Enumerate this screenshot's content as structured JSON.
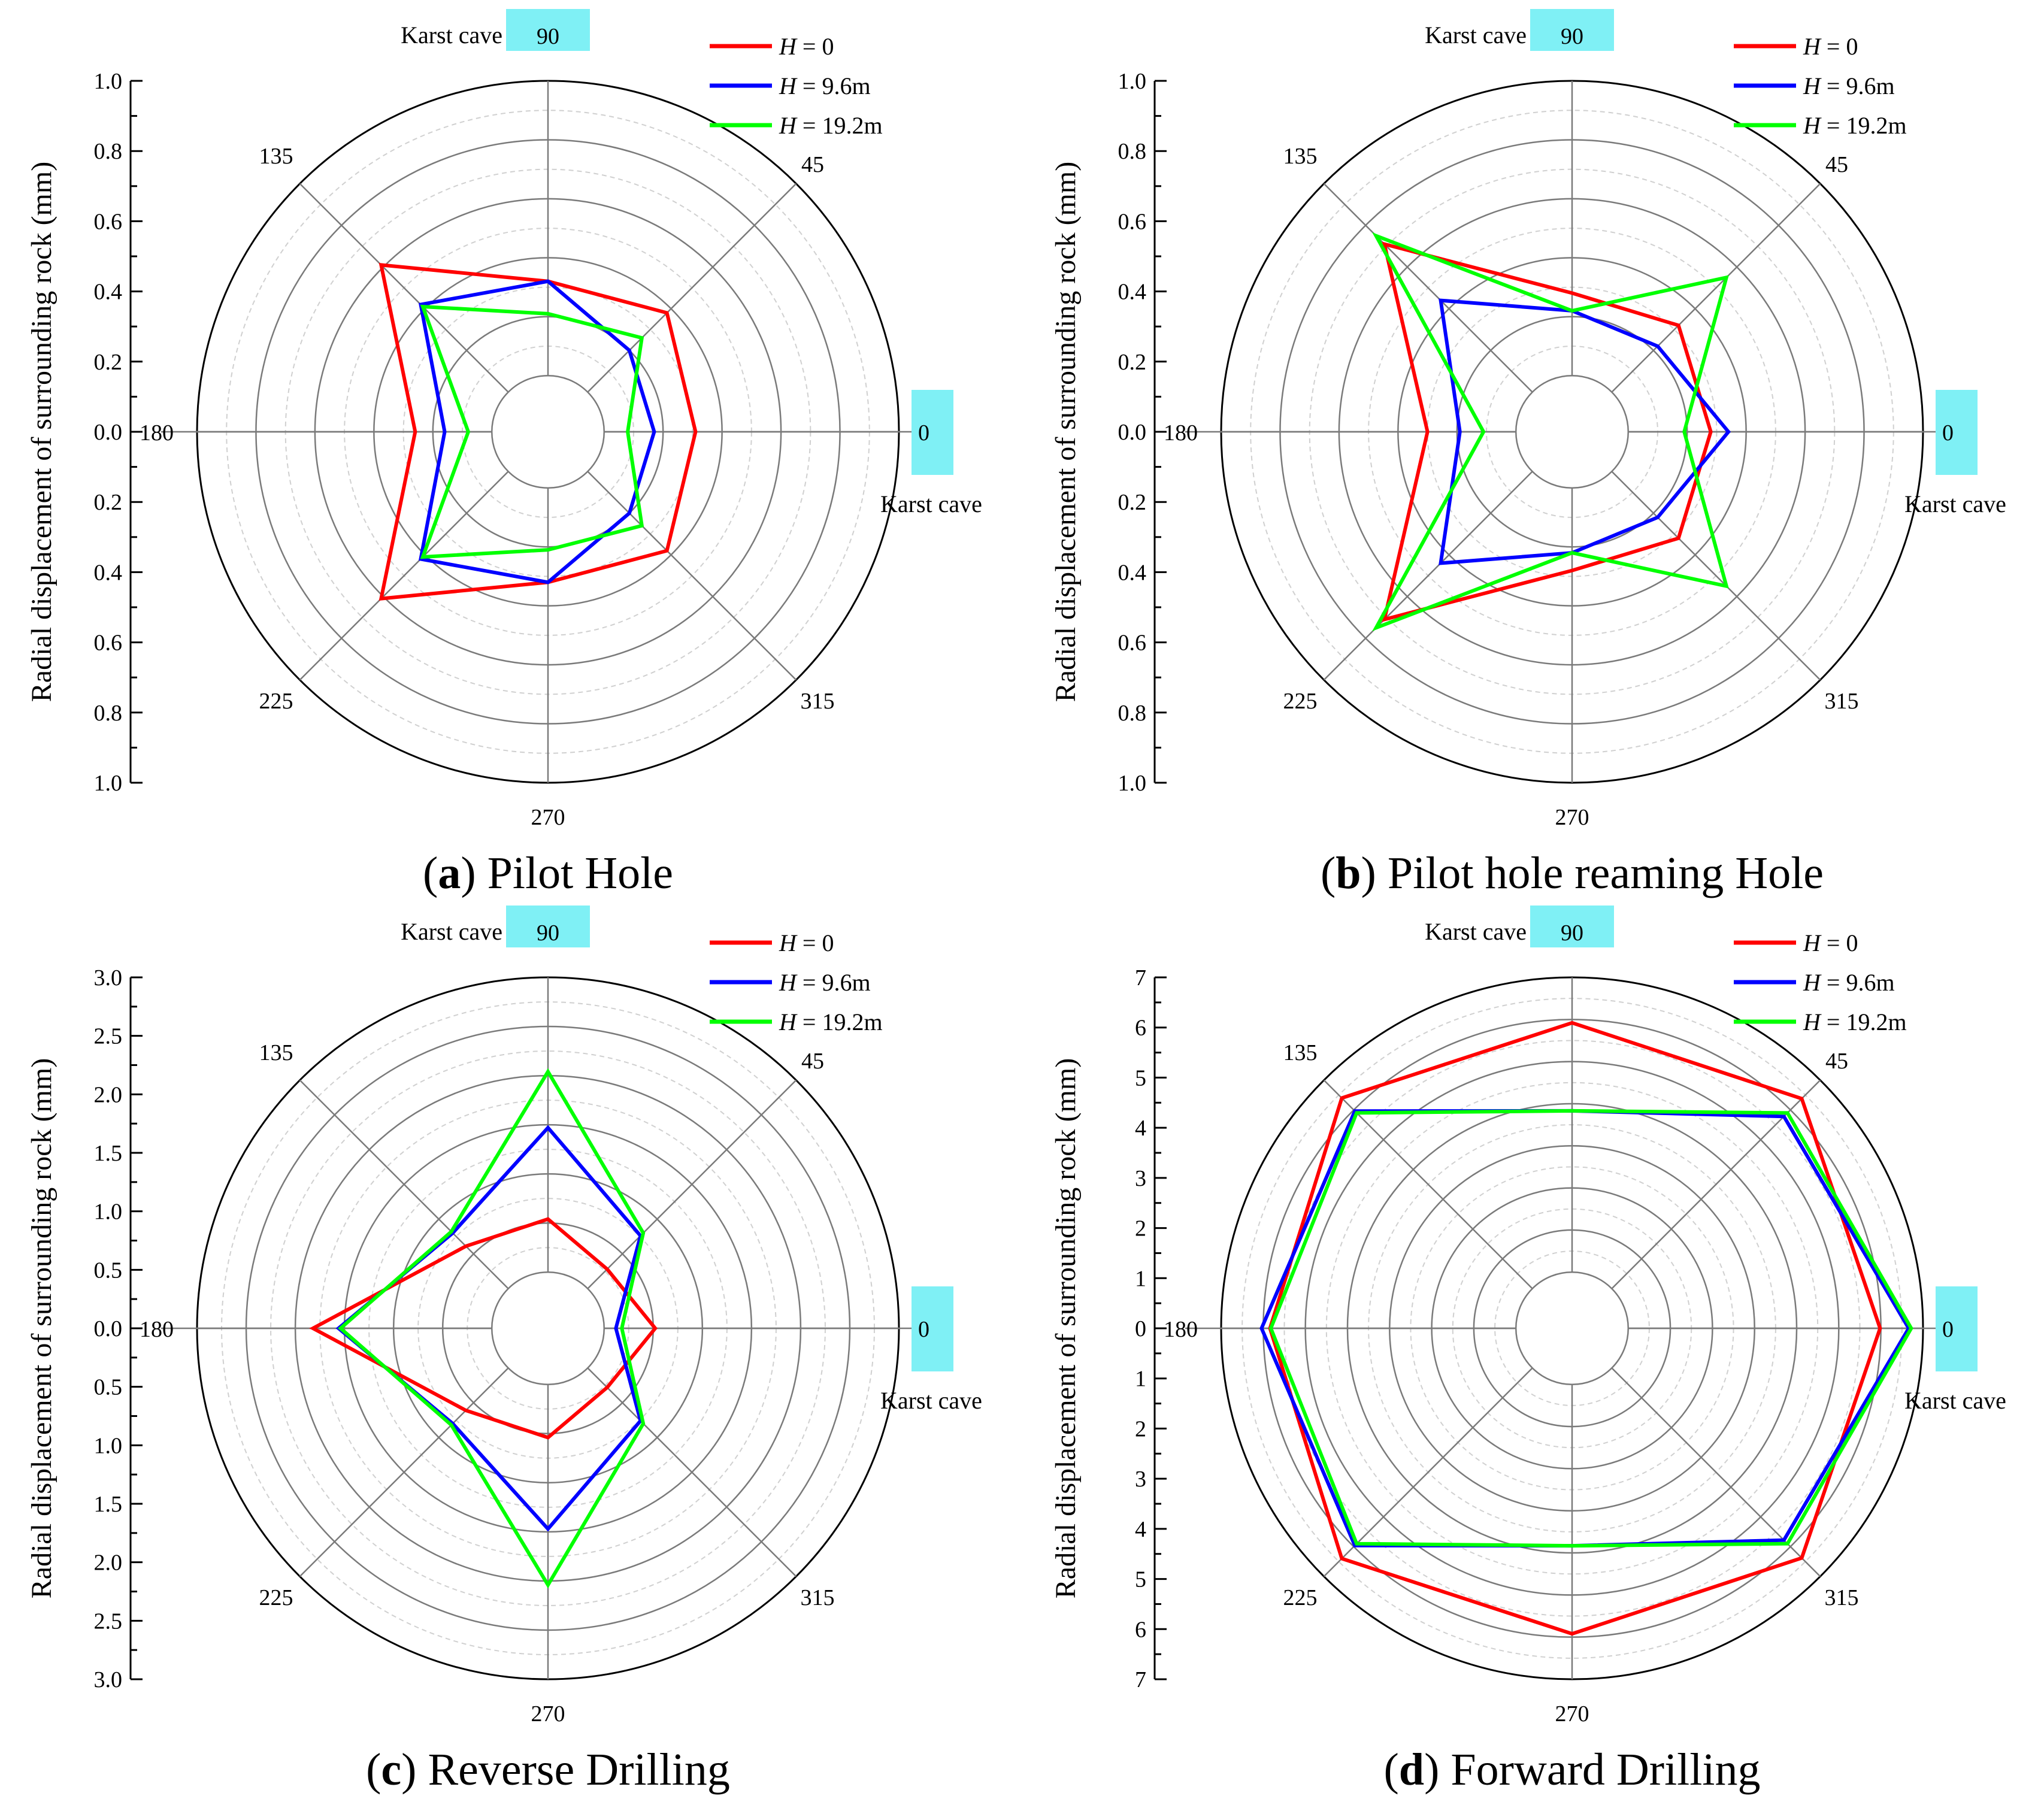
{
  "figure": {
    "legend_var": "H",
    "legend_eq": " = ",
    "cave_label": "Karst cave",
    "angle_labels": [
      "0",
      "45",
      "90",
      "135",
      "180",
      "225",
      "270",
      "315"
    ],
    "highlight_color": "#7ff0f5"
  },
  "chart_data": [
    {
      "type": "radar",
      "caption": {
        "letter": "a",
        "text": "Pilot Hole"
      },
      "ylabel": "Radial displacement of surrounding rock (mm)",
      "rlim": [
        0,
        1.0
      ],
      "ticks": [
        "1.0",
        "0.8",
        "0.6",
        "0.4",
        "0.2",
        "0.0",
        "0.2",
        "0.4",
        "0.6",
        "0.8",
        "1.0"
      ],
      "angles": [
        0,
        45,
        90,
        135,
        180,
        225,
        270,
        315
      ],
      "legend_position": "top-right",
      "series": [
        {
          "name": "0",
          "color": "#ff0000",
          "values": [
            0.31,
            0.38,
            0.32,
            0.61,
            0.26,
            0.61,
            0.32,
            0.38
          ]
        },
        {
          "name": "9.6m",
          "color": "#0000ff",
          "values": [
            0.17,
            0.2,
            0.32,
            0.42,
            0.16,
            0.42,
            0.32,
            0.2
          ]
        },
        {
          "name": "19.2m",
          "color": "#00ff00",
          "values": [
            0.08,
            0.26,
            0.21,
            0.41,
            0.08,
            0.41,
            0.21,
            0.26
          ]
        }
      ]
    },
    {
      "type": "radar",
      "caption": {
        "letter": "b",
        "text": "Pilot hole reaming Hole"
      },
      "ylabel": "Radial displacement of surrounding rock (mm)",
      "rlim": [
        0,
        1.0
      ],
      "ticks": [
        "1.0",
        "0.8",
        "0.6",
        "0.4",
        "0.2",
        "0.0",
        "0.2",
        "0.4",
        "0.6",
        "0.8",
        "1.0"
      ],
      "angles": [
        0,
        45,
        90,
        135,
        180,
        225,
        270,
        315
      ],
      "legend_position": "top-right",
      "series": [
        {
          "name": "0",
          "color": "#ff0000",
          "values": [
            0.28,
            0.32,
            0.28,
            0.71,
            0.3,
            0.71,
            0.28,
            0.32
          ]
        },
        {
          "name": "9.6m",
          "color": "#0000ff",
          "values": [
            0.34,
            0.22,
            0.22,
            0.44,
            0.19,
            0.44,
            0.22,
            0.22
          ]
        },
        {
          "name": "19.2m",
          "color": "#00ff00",
          "values": [
            0.19,
            0.55,
            0.22,
            0.75,
            0.11,
            0.75,
            0.22,
            0.55
          ]
        }
      ]
    },
    {
      "type": "radar",
      "caption": {
        "letter": "c",
        "text": "Reverse Drilling"
      },
      "ylabel": "Radial displacement of surrounding rock (mm)",
      "rlim": [
        0,
        3.0
      ],
      "ticks": [
        "3.0",
        "2.5",
        "2.0",
        "1.5",
        "1.0",
        "0.5",
        "0.0",
        "0.5",
        "1.0",
        "1.5",
        "2.0",
        "2.5",
        "3.0"
      ],
      "angles": [
        0,
        45,
        90,
        135,
        180,
        225,
        270,
        315
      ],
      "legend_position": "top-right",
      "series": [
        {
          "name": "0",
          "color": "#ff0000",
          "values": [
            0.52,
            0.28,
            0.54,
            0.61,
            1.82,
            0.61,
            0.54,
            0.28
          ]
        },
        {
          "name": "9.6m",
          "color": "#0000ff",
          "values": [
            0.12,
            0.76,
            1.47,
            0.8,
            1.56,
            0.8,
            1.47,
            0.76
          ]
        },
        {
          "name": "19.2m",
          "color": "#00ff00",
          "values": [
            0.18,
            0.8,
            2.04,
            0.82,
            1.54,
            0.82,
            2.04,
            0.8
          ]
        }
      ]
    },
    {
      "type": "radar",
      "caption": {
        "letter": "d",
        "text": "Forward Drilling"
      },
      "ylabel": "Radial displacement of surrounding rock (mm)",
      "rlim": [
        0,
        7
      ],
      "ticks": [
        "7",
        "6",
        "5",
        "4",
        "3",
        "2",
        "1",
        "0",
        "1",
        "2",
        "3",
        "4",
        "5",
        "6",
        "7"
      ],
      "angles": [
        0,
        45,
        90,
        135,
        180,
        225,
        270,
        315
      ],
      "legend_position": "top-right",
      "series": [
        {
          "name": "0",
          "color": "#ff0000",
          "values": [
            5.98,
            6.38,
            5.92,
            6.4,
            5.84,
            6.4,
            5.92,
            6.38
          ]
        },
        {
          "name": "9.6m",
          "color": "#0000ff",
          "values": [
            6.66,
            5.78,
            3.83,
            5.96,
            6.04,
            5.96,
            3.83,
            5.78
          ]
        },
        {
          "name": "19.2m",
          "color": "#00ff00",
          "values": [
            6.72,
            5.9,
            3.83,
            5.9,
            5.82,
            5.9,
            3.83,
            5.9
          ]
        }
      ]
    }
  ]
}
